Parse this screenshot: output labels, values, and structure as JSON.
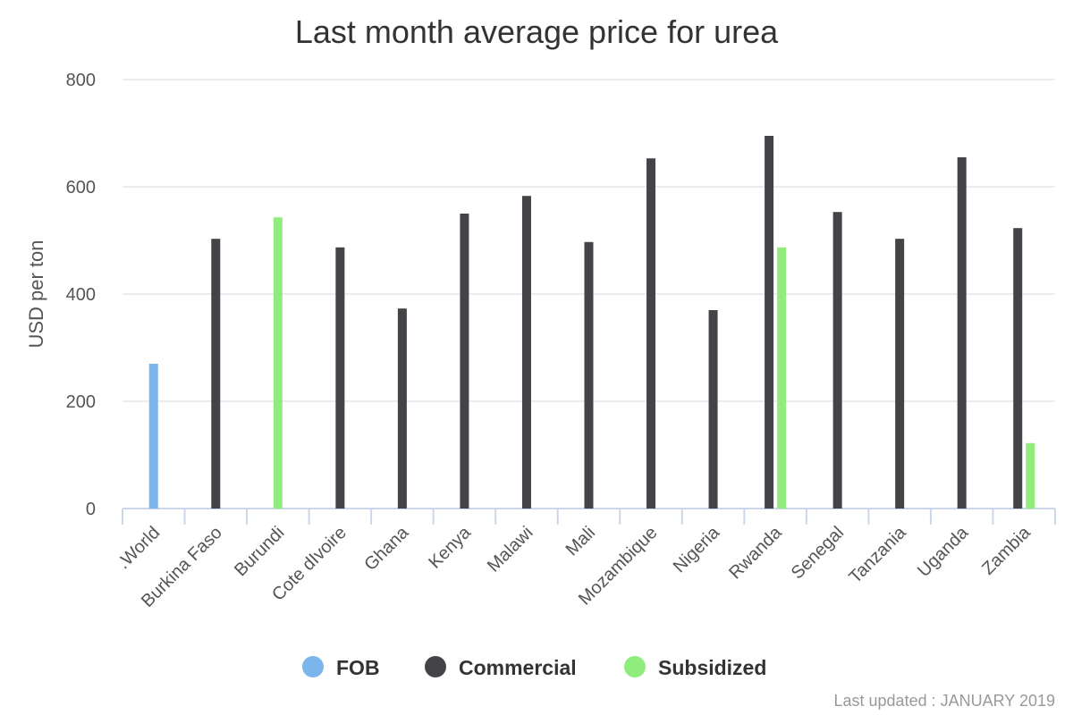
{
  "chart_data": {
    "type": "bar",
    "title": "Last month average price for urea",
    "xlabel": "",
    "ylabel": "USD per ton",
    "ylim": [
      0,
      800
    ],
    "yticks": [
      0,
      200,
      400,
      600,
      800
    ],
    "grid": true,
    "legend_position": "bottom",
    "categories": [
      ".World",
      "Burkina Faso",
      "Burundi",
      "Cote dIvoire",
      "Ghana",
      "Kenya",
      "Malawi",
      "Mali",
      "Mozambique",
      "Nigeria",
      "Rwanda",
      "Senegal",
      "Tanzania",
      "Uganda",
      "Zambia"
    ],
    "series": [
      {
        "name": "FOB",
        "color": "#7cb5ec",
        "values": [
          270,
          null,
          null,
          null,
          null,
          null,
          null,
          null,
          null,
          null,
          null,
          null,
          null,
          null,
          null
        ]
      },
      {
        "name": "Commercial",
        "color": "#434348",
        "values": [
          null,
          503,
          null,
          487,
          373,
          550,
          583,
          497,
          653,
          370,
          695,
          553,
          503,
          655,
          523
        ]
      },
      {
        "name": "Subsidized",
        "color": "#90ed7d",
        "values": [
          null,
          null,
          543,
          null,
          null,
          null,
          null,
          null,
          null,
          null,
          487,
          null,
          null,
          null,
          122
        ]
      }
    ]
  },
  "footer": {
    "text": "Last updated : JANUARY 2019"
  }
}
